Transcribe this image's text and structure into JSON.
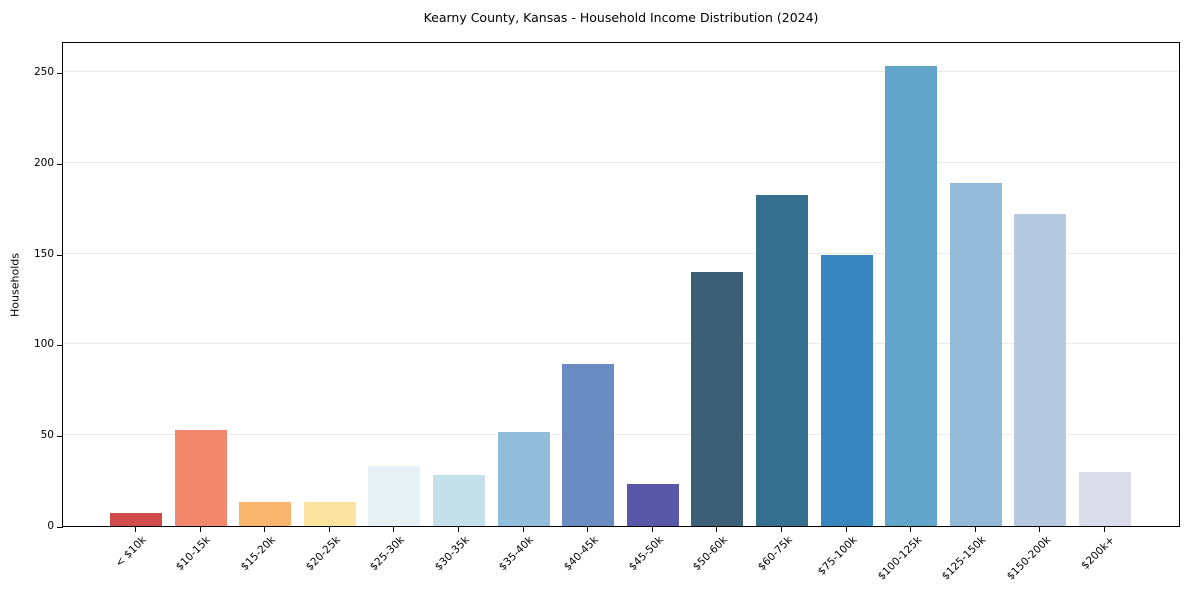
{
  "chart_data": {
    "type": "bar",
    "title": "Kearny County, Kansas - Household Income Distribution (2024)",
    "xlabel": "",
    "ylabel": "Households",
    "categories": [
      "< $10k",
      "$10-15k",
      "$15-20k",
      "$20-25k",
      "$25-30k",
      "$30-35k",
      "$35-40k",
      "$40-45k",
      "$45-50k",
      "$50-60k",
      "$60-75k",
      "$75-100k",
      "$100-125k",
      "$125-150k",
      "$150-200k",
      "$200k+"
    ],
    "values": [
      7,
      53,
      13,
      13,
      33,
      28,
      52,
      89,
      23,
      140,
      182,
      149,
      253,
      189,
      172,
      30
    ],
    "bar_colors": [
      "#D24B4B",
      "#F2876B",
      "#F9B46E",
      "#FCE3A0",
      "#E7F2F6",
      "#C4E0EA",
      "#91BCDA",
      "#6A8CC3",
      "#5A57A9",
      "#3A5F76",
      "#367091",
      "#3787BE",
      "#61A5CB",
      "#93BAD8",
      "#B7C9E2",
      "#DADDE9"
    ],
    "yticks": [
      0,
      50,
      100,
      150,
      200,
      250
    ],
    "ylim": [
      0,
      267
    ],
    "grid": "horizontal",
    "gridline_color": "#ebebee",
    "spine_color": "#000000",
    "background_color": "#ffffff",
    "legend": "none"
  }
}
